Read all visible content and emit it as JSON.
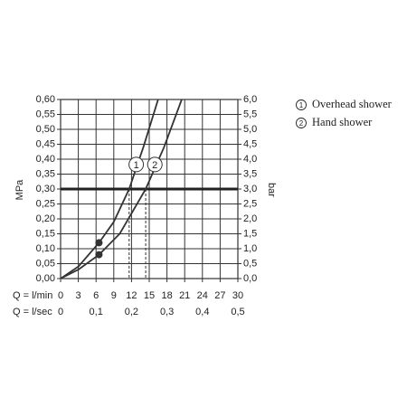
{
  "chart_data": {
    "type": "line",
    "y_label": "MPa",
    "y2_label": "bar",
    "x_label": "Q = l/min",
    "x2_label": "Q = l/sec",
    "xlim": [
      0,
      30
    ],
    "xticks": [
      0,
      3,
      6,
      9,
      12,
      15,
      18,
      21,
      24,
      27,
      30
    ],
    "x2lim": [
      0,
      0.5
    ],
    "x2ticks": [
      0,
      {
        "value": 0.1,
        "label": "0,1"
      },
      {
        "value": 0.2,
        "label": "0,2"
      },
      {
        "value": 0.3,
        "label": "0,3"
      },
      {
        "value": 0.4,
        "label": "0,4"
      },
      {
        "value": 0.5,
        "label": "0,5"
      }
    ],
    "ylim": [
      0,
      0.6
    ],
    "yticks": [
      {
        "value": 0,
        "label": "0,00"
      },
      {
        "value": 0.05,
        "label": "0,05"
      },
      {
        "value": 0.1,
        "label": "0,10"
      },
      {
        "value": 0.15,
        "label": "0,15"
      },
      {
        "value": 0.2,
        "label": "0,20"
      },
      {
        "value": 0.25,
        "label": "0,25"
      },
      {
        "value": 0.3,
        "label": "0,30"
      },
      {
        "value": 0.35,
        "label": "0,35"
      },
      {
        "value": 0.4,
        "label": "0,40"
      },
      {
        "value": 0.45,
        "label": "0,45"
      },
      {
        "value": 0.5,
        "label": "0,50"
      },
      {
        "value": 0.55,
        "label": "0,55"
      },
      {
        "value": 0.6,
        "label": "0,60"
      }
    ],
    "y2lim": [
      0,
      6
    ],
    "y2ticks": [
      {
        "value": 0,
        "label": "0,0"
      },
      {
        "value": 0.5,
        "label": "0,5"
      },
      {
        "value": 1,
        "label": "1,0"
      },
      {
        "value": 1.5,
        "label": "1,5"
      },
      {
        "value": 2,
        "label": "2,0"
      },
      {
        "value": 2.5,
        "label": "2,5"
      },
      {
        "value": 3,
        "label": "3,0"
      },
      {
        "value": 3.5,
        "label": "3,5"
      },
      {
        "value": 4,
        "label": "4,0"
      },
      {
        "value": 4.5,
        "label": "4,5"
      },
      {
        "value": 5,
        "label": "5,0"
      },
      {
        "value": 5.5,
        "label": "5,5"
      },
      {
        "value": 6,
        "label": "6,0"
      }
    ],
    "grid": true,
    "reference_y": 0.3,
    "reference_x": [
      11.6,
      14.4
    ],
    "series": [
      {
        "name": "Overhead shower",
        "label": "1",
        "color": "#333333",
        "x": [
          0,
          3,
          6.5,
          9,
          11.6,
          14,
          16.5
        ],
        "values": [
          0,
          0.04,
          0.12,
          0.19,
          0.3,
          0.44,
          0.6
        ],
        "points": [
          {
            "x": 6.5,
            "y": 0.12
          }
        ]
      },
      {
        "name": "Hand shower",
        "label": "2",
        "color": "#333333",
        "x": [
          0,
          3,
          6.5,
          10,
          14.4,
          17.5,
          20.5
        ],
        "values": [
          0,
          0.03,
          0.08,
          0.15,
          0.3,
          0.44,
          0.6
        ],
        "points": [
          {
            "x": 6.5,
            "y": 0.08
          }
        ]
      }
    ]
  }
}
